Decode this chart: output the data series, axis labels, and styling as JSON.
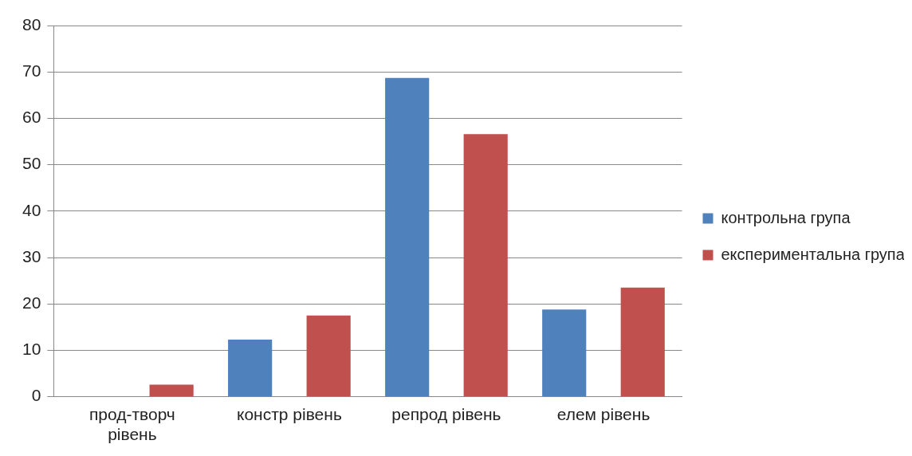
{
  "chart_data": {
    "type": "bar",
    "categories": [
      "прод-творч рівень",
      "констр рівень",
      "репрод рівень",
      "елем рівень"
    ],
    "series": [
      {
        "name": "контрольна група",
        "color": "#4f81bd",
        "values": [
          0,
          12.3,
          68.7,
          18.8
        ]
      },
      {
        "name": "експериментальна група",
        "color": "#c0504d",
        "values": [
          2.6,
          17.5,
          56.6,
          23.5
        ]
      }
    ],
    "ylim": [
      0,
      80
    ],
    "yticks": [
      0,
      10,
      20,
      30,
      40,
      50,
      60,
      70,
      80
    ],
    "grid": "y",
    "legend": "right"
  }
}
